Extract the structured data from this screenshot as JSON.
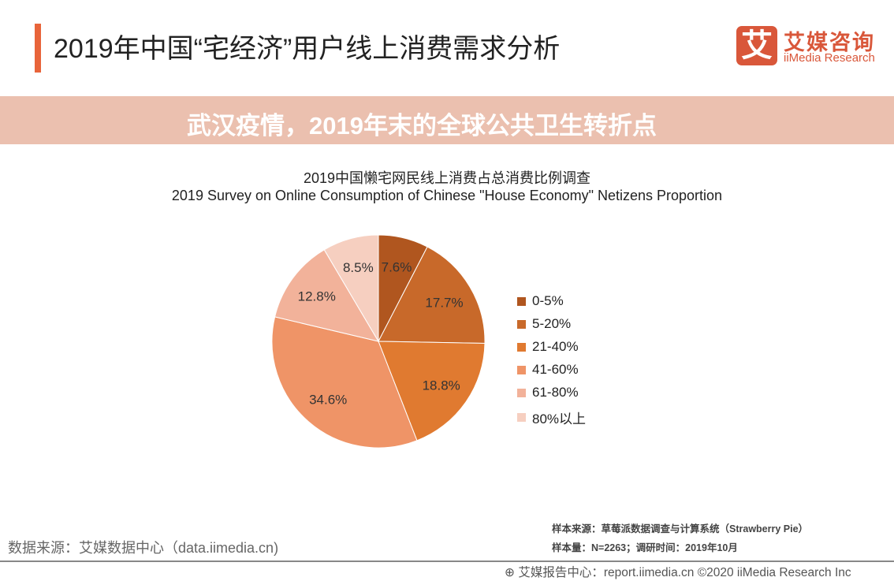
{
  "header": {
    "title": "2019年中国“宅经济”用户线上消费需求分析"
  },
  "logo": {
    "mark": "艾",
    "cn": "艾媒咨询",
    "en": "iiMedia Research"
  },
  "chart_data": {
    "type": "pie",
    "title": "2019中国懒宅网民线上消费占总消费比例调查",
    "subtitle": "2019 Survey on Online Consumption of Chinese \"House Economy\" Netizens Proportion",
    "legend_position": "right",
    "slices": [
      {
        "name": "0-5%",
        "value": 7.6,
        "label": "7.6%",
        "color": "#b0561f"
      },
      {
        "name": "5-20%",
        "value": 17.7,
        "label": "17.7%",
        "color": "#c8692a"
      },
      {
        "name": "21-40%",
        "value": 18.8,
        "label": "18.8%",
        "color": "#e07a30"
      },
      {
        "name": "41-60%",
        "value": 34.6,
        "label": "34.6%",
        "color": "#ef9467"
      },
      {
        "name": "61-80%",
        "value": 12.8,
        "label": "12.8%",
        "color": "#f2b29a"
      },
      {
        "name": "80%以上",
        "value": 8.5,
        "label": "8.5%",
        "color": "#f6cfc0"
      }
    ]
  },
  "banner": {
    "text": "武汉疫情，2019年末的全球公共卫生转折点"
  },
  "source": {
    "left": "数据来源：艾媒数据中心（data.iimedia.cn)",
    "sample_source": "样本来源：草莓派数据调查与计算系统（Strawberry  Pie）",
    "sample_size": "样本量：N=2263；调研时间：2019年10月"
  },
  "footer": {
    "text": "艾媒报告中心：report.iimedia.cn  ©2020  iiMedia Research Inc"
  }
}
